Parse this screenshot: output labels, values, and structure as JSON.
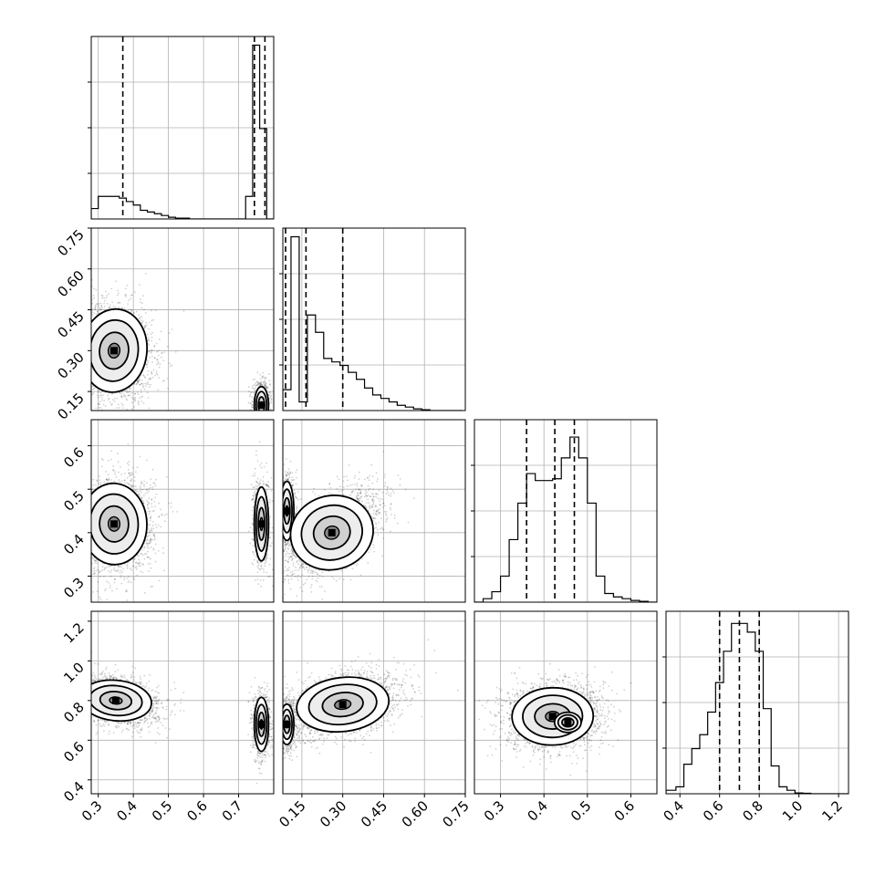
{
  "chart_data": {
    "type": "corner",
    "title": "",
    "grid": true,
    "params": [
      {
        "range": [
          0.28,
          0.8
        ],
        "ticks": [
          "0.3",
          "0.4",
          "0.5",
          "0.6",
          "0.7"
        ],
        "quantiles": [
          0.37,
          0.745,
          0.775
        ]
      },
      {
        "range": [
          0.08,
          0.75
        ],
        "ticks": [
          "0.15",
          "0.30",
          "0.45",
          "0.60",
          "0.75"
        ],
        "quantiles": [
          0.09,
          0.165,
          0.3
        ]
      },
      {
        "range": [
          0.24,
          0.66
        ],
        "ticks": [
          "0.3",
          "0.4",
          "0.5",
          "0.6"
        ],
        "quantiles": [
          0.36,
          0.425,
          0.47
        ]
      },
      {
        "range": [
          0.33,
          1.25
        ],
        "ticks": [
          "0.4",
          "0.6",
          "0.8",
          "1.0",
          "1.2"
        ],
        "quantiles": [
          0.6,
          0.7,
          0.8
        ]
      }
    ],
    "histograms": [
      {
        "param": 0,
        "edges": [
          0.28,
          0.3,
          0.32,
          0.34,
          0.36,
          0.38,
          0.4,
          0.42,
          0.44,
          0.46,
          0.48,
          0.5,
          0.52,
          0.54,
          0.56,
          0.58,
          0.6,
          0.62,
          0.64,
          0.66,
          0.68,
          0.7,
          0.72,
          0.74,
          0.76,
          0.78,
          0.8
        ],
        "counts": [
          0.06,
          0.13,
          0.13,
          0.13,
          0.12,
          0.1,
          0.08,
          0.05,
          0.04,
          0.03,
          0.02,
          0.01,
          0.005,
          0.005,
          0,
          0,
          0,
          0,
          0,
          0,
          0,
          0,
          0.13,
          1.0,
          0.52,
          0
        ],
        "ylim": [
          0,
          1.05
        ]
      },
      {
        "param": 1,
        "edges": [
          0.08,
          0.11,
          0.14,
          0.17,
          0.2,
          0.23,
          0.26,
          0.29,
          0.32,
          0.35,
          0.38,
          0.41,
          0.44,
          0.47,
          0.5,
          0.53,
          0.56,
          0.59,
          0.62,
          0.65,
          0.68,
          0.71,
          0.74
        ],
        "counts": [
          0.12,
          1.0,
          0.05,
          0.55,
          0.45,
          0.3,
          0.28,
          0.26,
          0.22,
          0.18,
          0.13,
          0.09,
          0.07,
          0.05,
          0.03,
          0.02,
          0.01,
          0.005,
          0,
          0,
          0,
          0
        ],
        "ylim": [
          0,
          1.05
        ]
      },
      {
        "param": 2,
        "edges": [
          0.24,
          0.26,
          0.28,
          0.3,
          0.32,
          0.34,
          0.36,
          0.38,
          0.4,
          0.42,
          0.44,
          0.46,
          0.48,
          0.5,
          0.52,
          0.54,
          0.56,
          0.58,
          0.6,
          0.62,
          0.64,
          0.66
        ],
        "counts": [
          0,
          0.02,
          0.06,
          0.15,
          0.36,
          0.57,
          0.74,
          0.7,
          0.7,
          0.71,
          0.83,
          0.95,
          0.83,
          0.57,
          0.15,
          0.05,
          0.03,
          0.02,
          0.01,
          0.005,
          0
        ],
        "ylim": [
          0,
          1.05
        ]
      },
      {
        "param": 3,
        "edges": [
          0.33,
          0.38,
          0.42,
          0.46,
          0.5,
          0.54,
          0.58,
          0.62,
          0.66,
          0.7,
          0.74,
          0.78,
          0.82,
          0.86,
          0.9,
          0.94,
          0.98,
          1.02,
          1.06,
          1.1,
          1.14,
          1.18,
          1.22,
          1.25
        ],
        "counts": [
          0.02,
          0.04,
          0.17,
          0.26,
          0.34,
          0.47,
          0.64,
          0.82,
          0.98,
          0.98,
          0.93,
          0.82,
          0.49,
          0.16,
          0.04,
          0.02,
          0.005,
          0.003,
          0,
          0,
          0,
          0,
          0
        ],
        "ylim": [
          0,
          1.05
        ]
      }
    ],
    "pairs": [
      {
        "x": 0,
        "y": 1,
        "clusters": [
          {
            "cx": 0.345,
            "cy": 0.3,
            "sx": 0.055,
            "sy": 0.09,
            "rho": -0.15,
            "n": 2400
          },
          {
            "cx": 0.765,
            "cy": 0.1,
            "sx": 0.012,
            "sy": 0.04,
            "rho": 0.0,
            "n": 900
          }
        ]
      },
      {
        "x": 0,
        "y": 2,
        "clusters": [
          {
            "cx": 0.345,
            "cy": 0.42,
            "sx": 0.055,
            "sy": 0.055,
            "rho": 0.05,
            "n": 2400
          },
          {
            "cx": 0.765,
            "cy": 0.42,
            "sx": 0.012,
            "sy": 0.05,
            "rho": 0.0,
            "n": 900
          }
        ]
      },
      {
        "x": 0,
        "y": 3,
        "clusters": [
          {
            "cx": 0.35,
            "cy": 0.8,
            "sx": 0.06,
            "sy": 0.06,
            "rho": -0.3,
            "n": 2400
          },
          {
            "cx": 0.765,
            "cy": 0.68,
            "sx": 0.012,
            "sy": 0.08,
            "rho": 0.0,
            "n": 900
          }
        ]
      },
      {
        "x": 1,
        "y": 2,
        "clusters": [
          {
            "cx": 0.095,
            "cy": 0.45,
            "sx": 0.015,
            "sy": 0.04,
            "rho": 0.0,
            "n": 900
          },
          {
            "cx": 0.26,
            "cy": 0.4,
            "sx": 0.09,
            "sy": 0.05,
            "rho": 0.55,
            "n": 2400
          }
        ]
      },
      {
        "x": 1,
        "y": 3,
        "clusters": [
          {
            "cx": 0.095,
            "cy": 0.68,
            "sx": 0.015,
            "sy": 0.06,
            "rho": 0.0,
            "n": 900
          },
          {
            "cx": 0.3,
            "cy": 0.78,
            "sx": 0.1,
            "sy": 0.08,
            "rho": 0.35,
            "n": 2400
          }
        ]
      },
      {
        "x": 2,
        "y": 3,
        "clusters": [
          {
            "cx": 0.42,
            "cy": 0.72,
            "sx": 0.055,
            "sy": 0.085,
            "rho": 0.05,
            "n": 2400
          },
          {
            "cx": 0.455,
            "cy": 0.69,
            "sx": 0.018,
            "sy": 0.03,
            "rho": 0.0,
            "n": 900
          }
        ]
      }
    ]
  }
}
